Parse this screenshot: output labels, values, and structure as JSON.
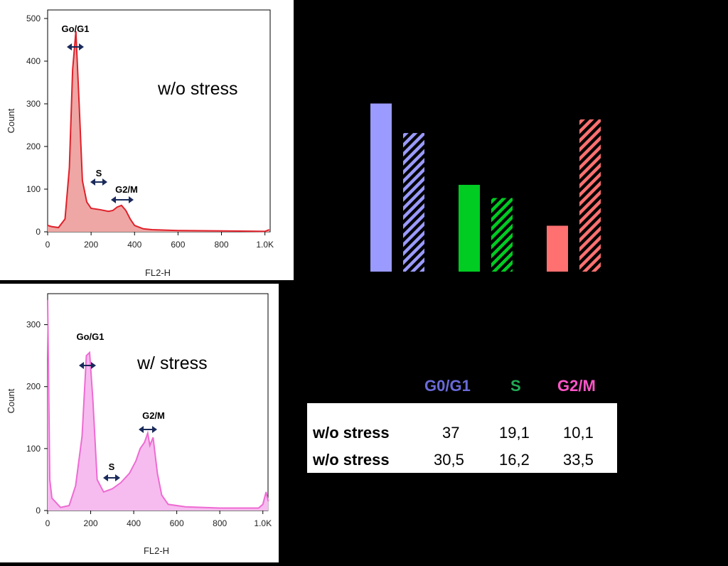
{
  "histograms": [
    {
      "id": "top",
      "condition_label": "w/o stress",
      "ylabel": "Count",
      "xlabel": "FL2-H",
      "x_ticks": [
        "0",
        "200",
        "400",
        "600",
        "800",
        "1.0K"
      ],
      "y_ticks": [
        "0",
        "100",
        "200",
        "300",
        "400",
        "500"
      ],
      "ylim": [
        0,
        520
      ],
      "line_color": "#e0202a",
      "fill_color": "#eea7a4",
      "peak_labels": [
        "Go/G1",
        "S",
        "G2/M"
      ],
      "curve": [
        [
          0,
          15
        ],
        [
          20,
          12
        ],
        [
          50,
          10
        ],
        [
          80,
          30
        ],
        [
          100,
          150
        ],
        [
          115,
          380
        ],
        [
          130,
          470
        ],
        [
          145,
          300
        ],
        [
          160,
          120
        ],
        [
          180,
          70
        ],
        [
          200,
          55
        ],
        [
          240,
          52
        ],
        [
          280,
          48
        ],
        [
          300,
          50
        ],
        [
          320,
          58
        ],
        [
          340,
          62
        ],
        [
          360,
          50
        ],
        [
          380,
          30
        ],
        [
          400,
          15
        ],
        [
          440,
          7
        ],
        [
          480,
          5
        ],
        [
          600,
          3
        ],
        [
          800,
          2
        ],
        [
          1000,
          1
        ],
        [
          1020,
          5
        ]
      ]
    },
    {
      "id": "bottom",
      "condition_label": "w/ stress",
      "ylabel": "Count",
      "xlabel": "FL2-H",
      "x_ticks": [
        "0",
        "200",
        "400",
        "600",
        "800",
        "1.0K"
      ],
      "y_ticks": [
        "0",
        "100",
        "200",
        "300"
      ],
      "ylim": [
        0,
        350
      ],
      "line_color": "#ee6bd2",
      "fill_color": "#f6bcef",
      "peak_labels": [
        "Go/G1",
        "S",
        "G2/M"
      ],
      "curve": [
        [
          0,
          340
        ],
        [
          10,
          50
        ],
        [
          20,
          20
        ],
        [
          60,
          5
        ],
        [
          100,
          8
        ],
        [
          130,
          40
        ],
        [
          160,
          120
        ],
        [
          180,
          250
        ],
        [
          195,
          255
        ],
        [
          210,
          180
        ],
        [
          230,
          50
        ],
        [
          260,
          30
        ],
        [
          300,
          35
        ],
        [
          340,
          45
        ],
        [
          380,
          60
        ],
        [
          410,
          80
        ],
        [
          430,
          100
        ],
        [
          450,
          110
        ],
        [
          465,
          125
        ],
        [
          475,
          105
        ],
        [
          490,
          118
        ],
        [
          510,
          60
        ],
        [
          530,
          25
        ],
        [
          560,
          10
        ],
        [
          640,
          6
        ],
        [
          800,
          4
        ],
        [
          980,
          4
        ],
        [
          1000,
          10
        ],
        [
          1015,
          30
        ],
        [
          1025,
          15
        ]
      ]
    }
  ],
  "chart_data": {
    "type": "bar",
    "categories": [
      "G0/G1",
      "S",
      "G2/M"
    ],
    "series": [
      {
        "values": [
          37,
          19.1,
          10.1
        ],
        "pattern": "solid"
      },
      {
        "values": [
          30.5,
          16.2,
          33.5
        ],
        "pattern": "hatched"
      }
    ],
    "colors": [
      "#9a9aff",
      "#00cc22",
      "#ff7070"
    ],
    "ylim": [
      0,
      41
    ]
  },
  "table": {
    "headers": [
      "G0/G1",
      "S",
      "G2/M"
    ],
    "header_colors": [
      "#6a6ad8",
      "#22aa55",
      "#ff55c8"
    ],
    "rows": [
      {
        "label": "w/o stress",
        "values": [
          "37",
          "19,1",
          "10,1"
        ]
      },
      {
        "label": "w/o stress",
        "values": [
          "30,5",
          "16,2",
          "33,5"
        ]
      }
    ]
  }
}
